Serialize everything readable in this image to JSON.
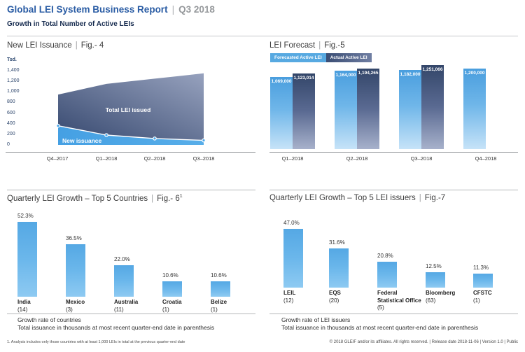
{
  "ui": {
    "sep": "|"
  },
  "header": {
    "title": "Global LEI System Business Report",
    "period": "Q3 2018",
    "subtitle": "Growth in Total Number of Active LEIs"
  },
  "panels": {
    "fig4": {
      "title": "New LEI Issuance",
      "fig": "Fig.- 4"
    },
    "fig5": {
      "title": "LEI Forecast",
      "fig": "Fig.-5"
    },
    "fig6": {
      "title": "Quarterly LEI Growth – Top 5 Countries",
      "fig": "Fig.- 6",
      "fig_sup": "1",
      "captions": [
        "Growth rate of countries",
        "Total issuance in thousands at most recent quarter-end date in parenthesis"
      ]
    },
    "fig7": {
      "title": "Quarterly LEI Growth – Top 5 LEI issuers",
      "fig": "Fig.-7",
      "captions": [
        "Growth rate of LEI issuers",
        "Total issuance in thousands at most recent quarter-end date in parenthesis"
      ]
    }
  },
  "footnote": "1. Analysis includes only those countries with at least 1,000 LEIs in total at the previous quarter-end date",
  "footer": "© 2018 GLEIF and/or its affiliates. All rights reserved.  |  Release date 2018-11-06  |  Version 1.0  |  Public",
  "colors": {
    "accent_blue": "#2a5ca4",
    "light_bar_top": "#4a9ede",
    "light_bar_bottom": "#c6e3f8",
    "dark_bar_top": "#334669",
    "dark_bar_bottom": "#a7b1cb",
    "area_dark": "#36486f",
    "area_light_blue": "#45a0e3"
  },
  "chart_data": [
    {
      "id": "fig4",
      "type": "area",
      "title": "New LEI Issuance | Fig.- 4",
      "ylabel": "Tsd.",
      "xlabel": "",
      "ylim": [
        0,
        1400
      ],
      "yticks": [
        1400,
        1200,
        1000,
        800,
        600,
        400,
        200,
        0
      ],
      "ytick_labels": [
        "1,400",
        "1,200",
        "1,000",
        "800",
        "600",
        "400",
        "200",
        "0"
      ],
      "x": [
        "Q4–2017",
        "Q1–2018",
        "Q2–2018",
        "Q3–2018"
      ],
      "series": [
        {
          "name": "Total LEI issued",
          "values": [
            950,
            1150,
            1250,
            1350
          ]
        },
        {
          "name": "New issuance",
          "values": [
            360,
            185,
            120,
            85
          ]
        }
      ],
      "grid": false,
      "legend_position": "inside-area-labels"
    },
    {
      "id": "fig5",
      "type": "bar",
      "title": "LEI Forecast | Fig.-5",
      "categories": [
        "Q1–2018",
        "Q2–2018",
        "Q3–2018",
        "Q4–2018"
      ],
      "series": [
        {
          "name": "Forecasted Active LEI",
          "values": [
            1069000,
            1164000,
            1182000,
            1200000
          ],
          "labels": [
            "1,069,000",
            "1,164,000",
            "1,182,000",
            "1,200,000"
          ]
        },
        {
          "name": "Actual Active LEI",
          "values": [
            1123014,
            1194265,
            1251066,
            null
          ],
          "labels": [
            "1,123,014",
            "1,194,265",
            "1,251,066",
            null
          ]
        }
      ],
      "grid": false,
      "legend_position": "top-left"
    },
    {
      "id": "fig6",
      "type": "bar",
      "title": "Quarterly LEI Growth – Top 5 Countries | Fig.- 6¹",
      "categories": [
        "India",
        "Mexico",
        "Australia",
        "Croatia",
        "Belize"
      ],
      "counts": [
        "(14)",
        "(3)",
        "(11)",
        "(1)",
        "(1)"
      ],
      "values": [
        52.3,
        36.5,
        22.0,
        10.6,
        10.6
      ],
      "value_labels": [
        "52.3%",
        "36.5%",
        "22.0%",
        "10.6%",
        "10.6%"
      ],
      "ylim": [
        0,
        55
      ],
      "grid": false
    },
    {
      "id": "fig7",
      "type": "bar",
      "title": "Quarterly LEI Growth – Top 5 LEI issuers | Fig.-7",
      "categories": [
        "LEIL",
        "EQS",
        "Federal Statistical Office",
        "Bloomberg",
        "CFSTC"
      ],
      "counts": [
        "(12)",
        "(20)",
        "(5)",
        "(63)",
        "(1)"
      ],
      "values": [
        47.0,
        31.6,
        20.8,
        12.5,
        11.3
      ],
      "value_labels": [
        "47.0%",
        "31.6%",
        "20.8%",
        "12.5%",
        "11.3%"
      ],
      "ylim": [
        0,
        50
      ],
      "grid": false
    }
  ]
}
